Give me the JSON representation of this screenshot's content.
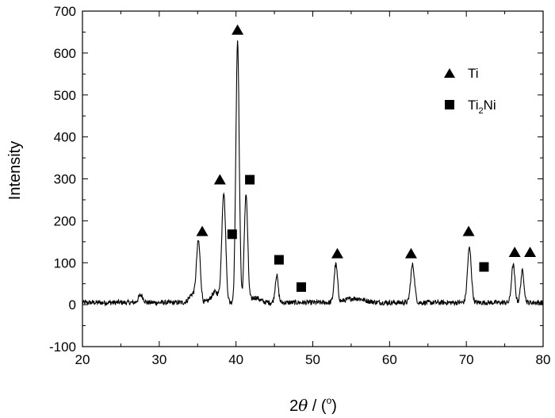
{
  "chart_data": {
    "type": "line",
    "title": "",
    "xlabel": "2θ / (°)",
    "xlabel_parts": {
      "prefix": "2",
      "symbol": "θ",
      "slash": " / (",
      "degree": "o",
      "suffix": ")"
    },
    "ylabel": "Intensity",
    "xlim": [
      20,
      80
    ],
    "ylim": [
      -100,
      700
    ],
    "xticks": [
      20,
      30,
      40,
      50,
      60,
      70,
      80
    ],
    "yticks": [
      -100,
      0,
      100,
      200,
      300,
      400,
      500,
      600,
      700
    ],
    "grid": false,
    "legend": {
      "placement": "top-right",
      "entries": [
        {
          "marker": "triangle",
          "label": "Ti",
          "label_main": "Ti",
          "label_sub": "",
          "label_tail": ""
        },
        {
          "marker": "square",
          "label": "Ti2Ni",
          "label_main": "Ti",
          "label_sub": "2",
          "label_tail": "Ni"
        }
      ]
    },
    "series": [
      {
        "baseline": 5,
        "noise": 6,
        "peaks": [
          {
            "x": 35.1,
            "y": 145,
            "w": 0.25
          },
          {
            "x": 38.4,
            "y": 262,
            "w": 0.25
          },
          {
            "x": 40.2,
            "y": 620,
            "w": 0.22
          },
          {
            "x": 41.3,
            "y": 258,
            "w": 0.22
          },
          {
            "x": 45.3,
            "y": 65,
            "w": 0.2
          },
          {
            "x": 53.0,
            "y": 90,
            "w": 0.22
          },
          {
            "x": 63.0,
            "y": 90,
            "w": 0.25
          },
          {
            "x": 70.4,
            "y": 130,
            "w": 0.25
          },
          {
            "x": 76.1,
            "y": 90,
            "w": 0.22
          },
          {
            "x": 77.3,
            "y": 75,
            "w": 0.22
          }
        ],
        "bumps": [
          {
            "x": 27.6,
            "y": 18,
            "w": 0.3
          },
          {
            "x": 34.3,
            "y": 20,
            "w": 0.4
          },
          {
            "x": 37.3,
            "y": 25,
            "w": 0.5
          },
          {
            "x": 42.5,
            "y": 12,
            "w": 0.6
          },
          {
            "x": 55.5,
            "y": 10,
            "w": 1.2
          }
        ]
      }
    ],
    "markers": [
      {
        "type": "triangle",
        "x": 35.6,
        "y": 175
      },
      {
        "type": "triangle",
        "x": 37.9,
        "y": 298
      },
      {
        "type": "triangle",
        "x": 40.2,
        "y": 655
      },
      {
        "type": "triangle",
        "x": 53.2,
        "y": 122
      },
      {
        "type": "triangle",
        "x": 62.8,
        "y": 122
      },
      {
        "type": "triangle",
        "x": 70.3,
        "y": 175
      },
      {
        "type": "triangle",
        "x": 76.3,
        "y": 125
      },
      {
        "type": "triangle",
        "x": 78.3,
        "y": 125
      },
      {
        "type": "square",
        "x": 39.5,
        "y": 168
      },
      {
        "type": "square",
        "x": 41.8,
        "y": 298
      },
      {
        "type": "square",
        "x": 45.6,
        "y": 107
      },
      {
        "type": "square",
        "x": 48.5,
        "y": 42
      },
      {
        "type": "square",
        "x": 72.3,
        "y": 90
      }
    ],
    "colors": {
      "line": "#000000",
      "marker": "#000000",
      "axis": "#000000"
    }
  }
}
